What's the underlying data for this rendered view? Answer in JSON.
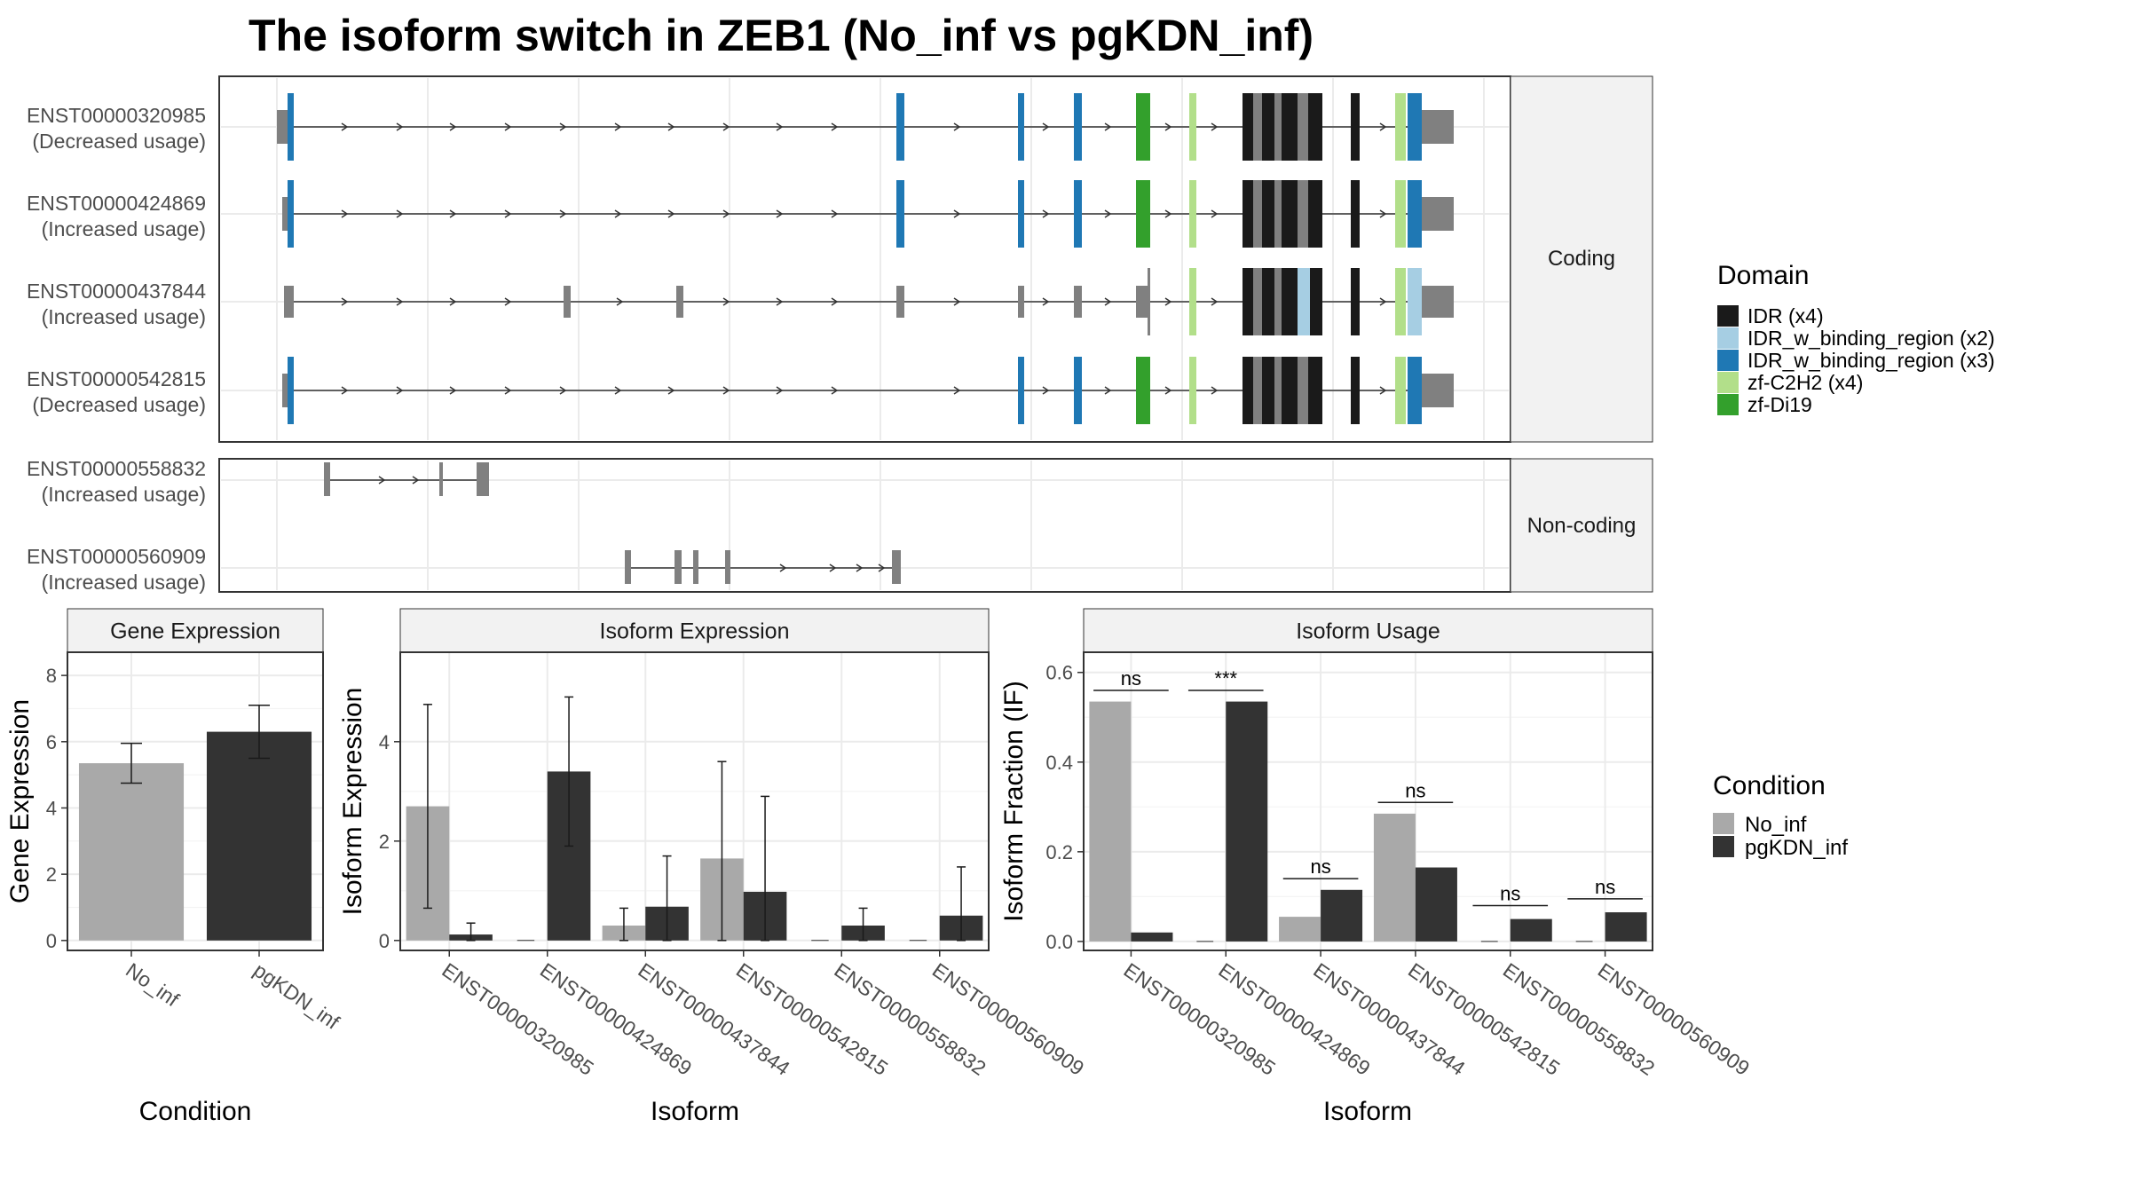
{
  "title": "The isoform switch in ZEB1 (No_inf vs pgKDN_inf)",
  "colors": {
    "no_inf": "#a9a9a9",
    "pgkdn_inf": "#333333",
    "exon": "#808080",
    "IDR": "#1a1a1a",
    "IDR_w_binding_region_x2": "#a6cee3",
    "IDR_w_binding_region_x3": "#1f78b4",
    "zf_C2H2": "#b2df8a",
    "zf_Di19": "#33a02c"
  },
  "structure": {
    "coding_strip": "Coding",
    "noncoding_strip": "Non-coding",
    "coding_isoforms": [
      {
        "id": "ENST00000320985",
        "usage": "(Decreased usage)"
      },
      {
        "id": "ENST00000424869",
        "usage": "(Increased usage)"
      },
      {
        "id": "ENST00000437844",
        "usage": "(Increased usage)"
      },
      {
        "id": "ENST00000542815",
        "usage": "(Decreased usage)"
      }
    ],
    "noncoding_isoforms": [
      {
        "id": "ENST00000558832",
        "usage": "(Increased usage)"
      },
      {
        "id": "ENST00000560909",
        "usage": "(Increased usage)"
      }
    ]
  },
  "legend_domain": {
    "title": "Domain",
    "items": [
      {
        "label": "IDR (x4)",
        "color": "#1a1a1a"
      },
      {
        "label": "IDR_w_binding_region (x2)",
        "color": "#a6cee3"
      },
      {
        "label": "IDR_w_binding_region (x3)",
        "color": "#1f78b4"
      },
      {
        "label": "zf-C2H2 (x4)",
        "color": "#b2df8a"
      },
      {
        "label": "zf-Di19",
        "color": "#33a02c"
      }
    ]
  },
  "legend_condition": {
    "title": "Condition",
    "items": [
      {
        "label": "No_inf",
        "color": "#a9a9a9"
      },
      {
        "label": "pgKDN_inf",
        "color": "#333333"
      }
    ]
  },
  "chart_data": [
    {
      "type": "bar",
      "strip": "Gene Expression",
      "xlabel": "Condition",
      "ylabel": "Gene Expression",
      "categories": [
        "No_inf",
        "pgKDN_inf"
      ],
      "values": [
        5.35,
        6.3
      ],
      "error_low": [
        4.75,
        5.5
      ],
      "error_high": [
        5.95,
        7.1
      ],
      "ylim": [
        -0.3,
        8.7
      ],
      "yticks": [
        0,
        2,
        4,
        6,
        8
      ]
    },
    {
      "type": "bar",
      "strip": "Isoform Expression",
      "xlabel": "Isoform",
      "ylabel": "Isoform Expression",
      "categories": [
        "ENST00000320985",
        "ENST00000424869",
        "ENST00000437844",
        "ENST00000542815",
        "ENST00000558832",
        "ENST00000560909"
      ],
      "series": [
        {
          "name": "No_inf",
          "values": [
            2.7,
            0.0,
            0.3,
            1.65,
            0.0,
            0.0
          ],
          "error_low": [
            0.65,
            0.0,
            0.0,
            0.0,
            0.0,
            0.0
          ],
          "error_high": [
            4.75,
            0.0,
            0.65,
            3.6,
            0.0,
            0.0
          ]
        },
        {
          "name": "pgKDN_inf",
          "values": [
            0.12,
            3.4,
            0.68,
            0.98,
            0.3,
            0.5
          ],
          "error_low": [
            0.0,
            1.9,
            0.0,
            0.0,
            0.0,
            0.0
          ],
          "error_high": [
            0.35,
            4.9,
            1.7,
            2.9,
            0.65,
            1.48
          ]
        }
      ],
      "ylim": [
        -0.2,
        5.8
      ],
      "yticks": [
        0,
        2,
        4
      ]
    },
    {
      "type": "bar",
      "strip": "Isoform Usage",
      "xlabel": "Isoform",
      "ylabel": "Isoform Fraction (IF)",
      "categories": [
        "ENST00000320985",
        "ENST00000424869",
        "ENST00000437844",
        "ENST00000542815",
        "ENST00000558832",
        "ENST00000560909"
      ],
      "series": [
        {
          "name": "No_inf",
          "values": [
            0.535,
            0.0,
            0.055,
            0.285,
            0.0,
            0.0
          ]
        },
        {
          "name": "pgKDN_inf",
          "values": [
            0.02,
            0.535,
            0.115,
            0.165,
            0.05,
            0.065
          ]
        }
      ],
      "significance": [
        "ns",
        "***",
        "ns",
        "ns",
        "ns",
        "ns"
      ],
      "sig_level": [
        0.56,
        0.56,
        0.14,
        0.31,
        0.08,
        0.095
      ],
      "ylim": [
        -0.02,
        0.645
      ],
      "yticks": [
        0.0,
        0.2,
        0.4,
        0.6
      ],
      "ytick_labels": [
        "0.0",
        "0.2",
        "0.4",
        "0.6"
      ]
    }
  ]
}
